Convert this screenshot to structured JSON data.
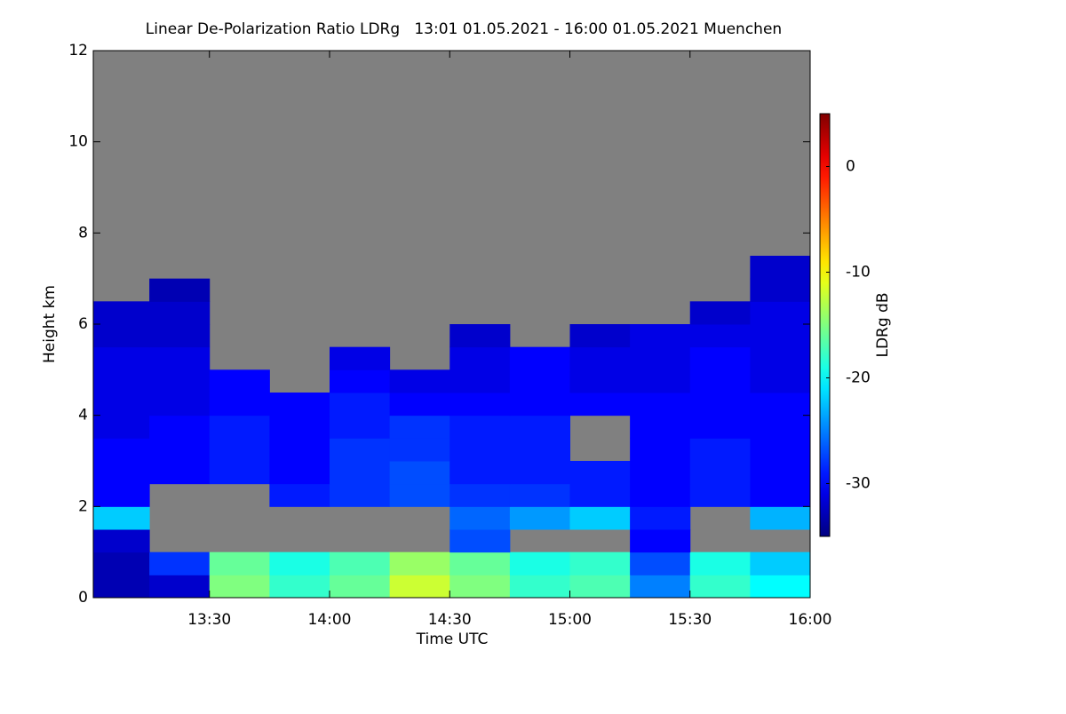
{
  "chart_data": {
    "type": "heatmap",
    "title": "Linear De-Polarization Ratio LDRg   13:01 01.05.2021 - 16:00 01.05.2021 Muenchen",
    "x_label": "Time UTC",
    "y_label": "Height km",
    "colorbar_label": "LDRg dB",
    "colormap": "jet",
    "missing_color": "#808080",
    "xlim": [
      781,
      960
    ],
    "xticks": [
      {
        "value": 810,
        "label": "13:30"
      },
      {
        "value": 840,
        "label": "14:00"
      },
      {
        "value": 870,
        "label": "14:30"
      },
      {
        "value": 900,
        "label": "15:00"
      },
      {
        "value": 930,
        "label": "15:30"
      },
      {
        "value": 960,
        "label": "16:00"
      }
    ],
    "ylim": [
      0,
      12
    ],
    "yticks": [
      0,
      2,
      4,
      6,
      8,
      10,
      12
    ],
    "clim": [
      -35,
      5
    ],
    "cticks": [
      0,
      -10,
      -20,
      -30
    ],
    "x_edges": [
      781,
      795,
      810,
      825,
      840,
      855,
      870,
      885,
      900,
      915,
      930,
      945,
      960
    ],
    "y_edges": [
      0,
      0.5,
      1,
      1.5,
      2,
      2.5,
      3,
      3.5,
      4,
      4.5,
      5,
      5.5,
      6,
      6.5,
      7,
      7.5
    ],
    "values": [
      [
        -33,
        -32,
        -15,
        -18,
        -16,
        -12,
        -15,
        -18,
        -17,
        -25,
        -18,
        -20
      ],
      [
        -33,
        -28,
        -16,
        -19,
        -17,
        -14,
        -16,
        -19,
        -18,
        -27,
        -19,
        -22
      ],
      [
        -32,
        null,
        null,
        null,
        null,
        null,
        -27,
        null,
        null,
        -30,
        null,
        null
      ],
      [
        -22,
        null,
        null,
        null,
        null,
        null,
        -26,
        -24,
        -22,
        -29,
        null,
        -23
      ],
      [
        -30,
        null,
        null,
        -29,
        -28,
        -27,
        -28,
        -28,
        -29,
        -30,
        -29,
        -30
      ],
      [
        -30,
        -30,
        -29,
        -30,
        -28,
        -27,
        -29,
        -29,
        -29,
        -30,
        -29,
        -30
      ],
      [
        -30,
        -30,
        -29,
        -30,
        -28,
        -28,
        -29,
        -29,
        null,
        -30,
        -29,
        -30
      ],
      [
        -31,
        -30,
        -29,
        -30,
        -29,
        -28,
        -29,
        -29,
        null,
        -30,
        -30,
        -30
      ],
      [
        -31,
        -31,
        -30,
        -30,
        -29,
        -30,
        -30,
        -30,
        -30,
        -30,
        -30,
        -30
      ],
      [
        -31,
        -31,
        -30,
        null,
        -30,
        -31,
        -31,
        -30,
        -31,
        -31,
        -30,
        -31
      ],
      [
        -31,
        -31,
        null,
        null,
        -31,
        null,
        -31,
        -30,
        -31,
        -31,
        -30,
        -31
      ],
      [
        -32,
        -32,
        null,
        null,
        null,
        null,
        -32,
        null,
        -32,
        -31,
        -31,
        -31
      ],
      [
        -32,
        -32,
        null,
        null,
        null,
        null,
        null,
        null,
        null,
        null,
        -32,
        -31
      ],
      [
        null,
        -33,
        null,
        null,
        null,
        null,
        null,
        null,
        null,
        null,
        null,
        -32
      ],
      [
        null,
        null,
        null,
        null,
        null,
        null,
        null,
        null,
        null,
        null,
        null,
        -32
      ]
    ]
  }
}
